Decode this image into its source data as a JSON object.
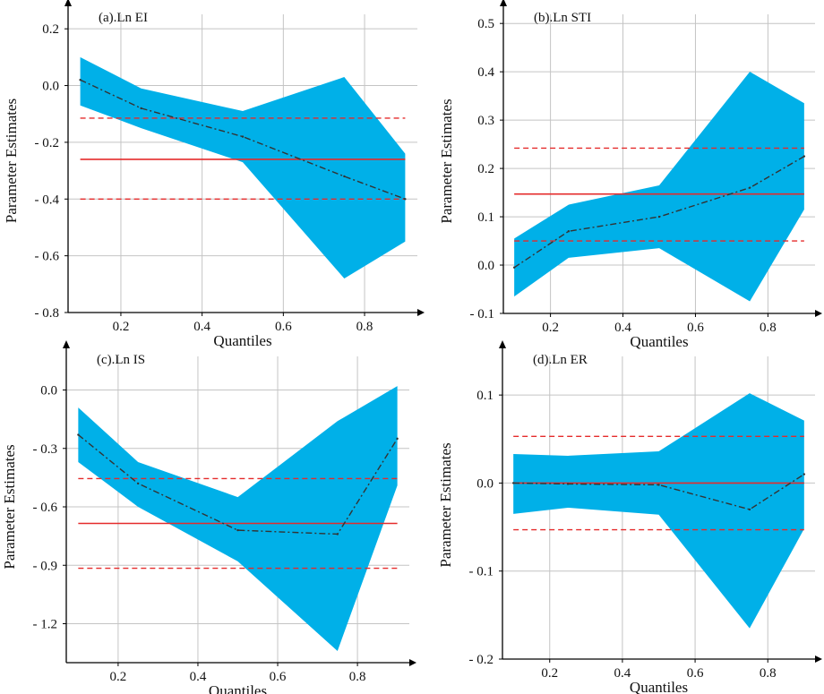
{
  "colors": {
    "band": "#00b0e8",
    "ols": "#e52b2b",
    "axis": "#000000",
    "grid": "#c4c4c4",
    "estimate": "#333333"
  },
  "chart_data": [
    {
      "type": "area",
      "title": "(a).Ln EI",
      "xlabel": "Quantiles",
      "ylabel": "Parameter Estimates",
      "xlim": [
        0.07,
        0.93
      ],
      "ylim": [
        -0.8,
        0.27
      ],
      "xticks": [
        0.2,
        0.4,
        0.6,
        0.8
      ],
      "xtick_labels": [
        "0.2",
        "0.4",
        "0.6",
        "0.8"
      ],
      "yticks": [
        -0.8,
        -0.6,
        -0.4,
        -0.2,
        0.0,
        0.2
      ],
      "ytick_labels": [
        "- 0.8",
        "- 0.6",
        "- 0.4",
        "- 0.2",
        "0.0",
        "0.2"
      ],
      "x": [
        0.1,
        0.25,
        0.5,
        0.75,
        0.9
      ],
      "estimate": [
        0.02,
        -0.08,
        -0.18,
        -0.32,
        -0.4
      ],
      "upper": [
        0.1,
        -0.01,
        -0.09,
        0.03,
        -0.24
      ],
      "lower": [
        -0.07,
        -0.15,
        -0.27,
        -0.68,
        -0.55
      ],
      "ols": -0.26,
      "ols_ci": [
        -0.115,
        -0.4
      ]
    },
    {
      "type": "area",
      "title": "(b).Ln STI",
      "xlabel": "Quantiles",
      "ylabel": "Parameter Estimates",
      "xlim": [
        0.07,
        0.93
      ],
      "ylim": [
        -0.1,
        0.53
      ],
      "xticks": [
        0.2,
        0.4,
        0.6,
        0.8
      ],
      "xtick_labels": [
        "0.2",
        "0.4",
        "0.6",
        "0.8"
      ],
      "yticks": [
        -0.1,
        0.0,
        0.1,
        0.2,
        0.3,
        0.4,
        0.5
      ],
      "ytick_labels": [
        "- 0.1",
        "0.0",
        "0.1",
        "0.2",
        "0.3",
        "0.4",
        "0.5"
      ],
      "x": [
        0.1,
        0.25,
        0.5,
        0.75,
        0.9
      ],
      "estimate": [
        -0.005,
        0.07,
        0.1,
        0.16,
        0.225
      ],
      "upper": [
        0.055,
        0.125,
        0.165,
        0.4,
        0.335
      ],
      "lower": [
        -0.065,
        0.015,
        0.035,
        -0.075,
        0.115
      ],
      "ols": 0.147,
      "ols_ci": [
        0.242,
        0.05
      ]
    },
    {
      "type": "area",
      "title": "(c).Ln IS",
      "xlabel": "Quantiles",
      "ylabel": "Parameter Estimates",
      "xlim": [
        0.07,
        0.93
      ],
      "ylim": [
        -1.4,
        0.2
      ],
      "xticks": [
        0.2,
        0.4,
        0.6,
        0.8
      ],
      "xtick_labels": [
        "0.2",
        "0.4",
        "0.6",
        "0.8"
      ],
      "yticks": [
        -1.2,
        -0.9,
        -0.6,
        -0.3,
        0.0
      ],
      "ytick_labels": [
        "- 1.2",
        "- 0.9",
        "- 0.6",
        "- 0.3",
        "0.0"
      ],
      "x": [
        0.1,
        0.25,
        0.5,
        0.75,
        0.9
      ],
      "estimate": [
        -0.23,
        -0.48,
        -0.72,
        -0.74,
        -0.25
      ],
      "upper": [
        -0.09,
        -0.37,
        -0.55,
        -0.16,
        0.02
      ],
      "lower": [
        -0.37,
        -0.6,
        -0.88,
        -1.34,
        -0.49
      ],
      "ols": -0.685,
      "ols_ci": [
        -0.455,
        -0.915
      ]
    },
    {
      "type": "area",
      "title": "(d).Ln ER",
      "xlabel": "Quantiles",
      "ylabel": "Parameter Estimates",
      "xlim": [
        0.07,
        0.93
      ],
      "ylim": [
        -0.2,
        0.15
      ],
      "xticks": [
        0.2,
        0.4,
        0.6,
        0.8
      ],
      "xtick_labels": [
        "0.2",
        "0.4",
        "0.6",
        "0.8"
      ],
      "yticks": [
        -0.2,
        -0.1,
        0.0,
        0.1
      ],
      "ytick_labels": [
        "- 0.2",
        "- 0.1",
        "0.0",
        "0.1"
      ],
      "x": [
        0.1,
        0.25,
        0.5,
        0.75,
        0.9
      ],
      "estimate": [
        0.0,
        -0.001,
        -0.002,
        -0.03,
        0.01
      ],
      "upper": [
        0.033,
        0.031,
        0.036,
        0.102,
        0.071
      ],
      "lower": [
        -0.035,
        -0.028,
        -0.036,
        -0.165,
        -0.052
      ],
      "ols": 0.0,
      "ols_ci": [
        0.053,
        -0.053
      ]
    }
  ]
}
